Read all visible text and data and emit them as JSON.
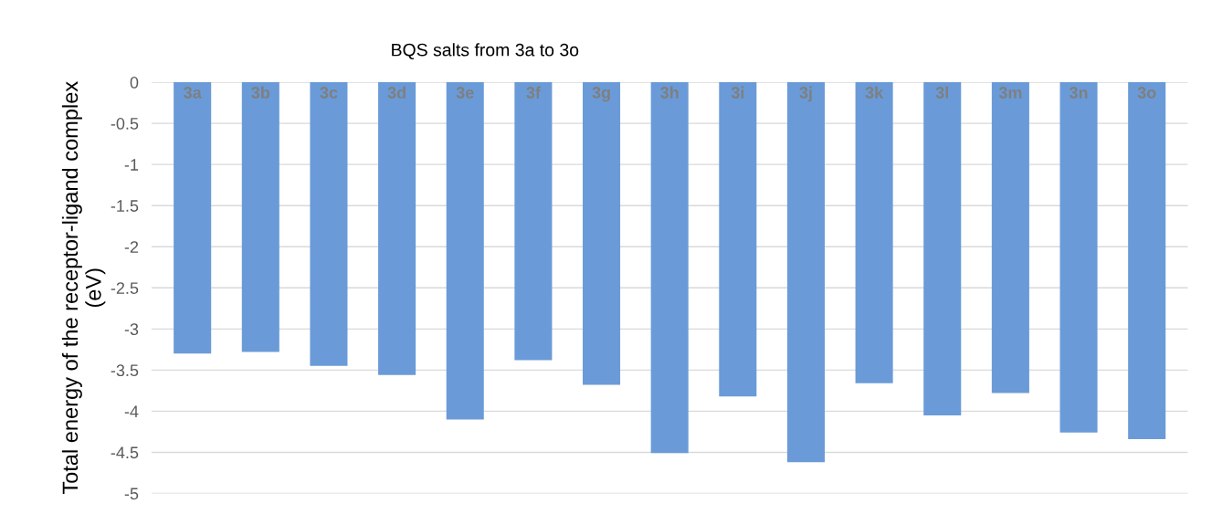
{
  "chart_data": {
    "type": "bar",
    "title": "BQS salts from 3a to 3o",
    "ylabel": "Total energy of the receptor-ligand complex (eV)",
    "categories": [
      "3a",
      "3b",
      "3c",
      "3d",
      "3e",
      "3f",
      "3g",
      "3h",
      "3i",
      "3j",
      "3k",
      "3l",
      "3m",
      "3n",
      "3o"
    ],
    "values": [
      -3.3,
      -3.28,
      -3.45,
      -3.56,
      -4.1,
      -3.38,
      -3.68,
      -4.51,
      -3.82,
      -4.62,
      -3.66,
      -4.05,
      -3.78,
      -4.26,
      -4.34
    ],
    "color": "#6a9bd8",
    "ylim": [
      -5,
      0
    ],
    "yticks": [
      0,
      -0.5,
      -1,
      -1.5,
      -2,
      -2.5,
      -3,
      -3.5,
      -4,
      -4.5,
      -5
    ],
    "grid": "y",
    "tick_labels": "y"
  }
}
